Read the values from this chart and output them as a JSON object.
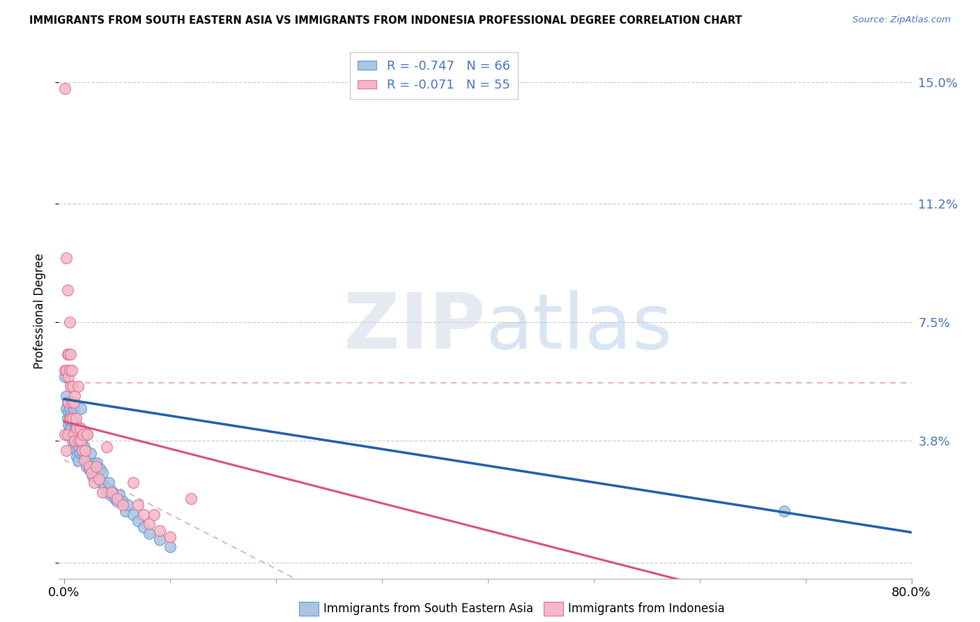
{
  "title": "IMMIGRANTS FROM SOUTH EASTERN ASIA VS IMMIGRANTS FROM INDONESIA PROFESSIONAL DEGREE CORRELATION CHART",
  "source": "Source: ZipAtlas.com",
  "ylabel": "Professional Degree",
  "ytick_vals": [
    0.0,
    0.038,
    0.075,
    0.112,
    0.15
  ],
  "ytick_labels": [
    "",
    "3.8%",
    "7.5%",
    "11.2%",
    "15.0%"
  ],
  "legend_entry1": "R = -0.747   N = 66",
  "legend_entry2": "R = -0.071   N = 55",
  "legend_label1": "Immigrants from South Eastern Asia",
  "legend_label2": "Immigrants from Indonesia",
  "watermark_zip": "ZIP",
  "watermark_atlas": "atlas",
  "color_blue_fill": "#aac4e2",
  "color_blue_edge": "#5b9bd5",
  "color_pink_fill": "#f4b8c8",
  "color_pink_edge": "#e07090",
  "color_line_blue": "#1f5fa6",
  "color_line_pink": "#d94f7a",
  "color_ci_pink": "#e8a0b8",
  "color_grid": "#cccccc",
  "color_ytick": "#4472c4",
  "xlim": [
    0.0,
    0.8
  ],
  "ylim": [
    -0.005,
    0.162
  ],
  "blue_x": [
    0.001,
    0.002,
    0.002,
    0.003,
    0.003,
    0.004,
    0.004,
    0.005,
    0.005,
    0.005,
    0.006,
    0.006,
    0.007,
    0.007,
    0.008,
    0.008,
    0.009,
    0.009,
    0.01,
    0.01,
    0.011,
    0.011,
    0.012,
    0.012,
    0.013,
    0.013,
    0.014,
    0.015,
    0.015,
    0.016,
    0.017,
    0.018,
    0.019,
    0.02,
    0.021,
    0.022,
    0.023,
    0.024,
    0.025,
    0.026,
    0.027,
    0.028,
    0.03,
    0.031,
    0.033,
    0.034,
    0.035,
    0.036,
    0.038,
    0.04,
    0.042,
    0.044,
    0.046,
    0.048,
    0.05,
    0.052,
    0.055,
    0.058,
    0.06,
    0.065,
    0.07,
    0.075,
    0.08,
    0.09,
    0.1,
    0.68
  ],
  "blue_y": [
    0.058,
    0.052,
    0.048,
    0.05,
    0.045,
    0.047,
    0.043,
    0.048,
    0.044,
    0.041,
    0.046,
    0.042,
    0.044,
    0.04,
    0.05,
    0.038,
    0.048,
    0.036,
    0.044,
    0.038,
    0.042,
    0.035,
    0.04,
    0.033,
    0.038,
    0.032,
    0.036,
    0.042,
    0.034,
    0.048,
    0.037,
    0.034,
    0.036,
    0.032,
    0.03,
    0.04,
    0.031,
    0.029,
    0.034,
    0.029,
    0.027,
    0.031,
    0.027,
    0.031,
    0.026,
    0.029,
    0.025,
    0.028,
    0.024,
    0.022,
    0.025,
    0.021,
    0.022,
    0.02,
    0.019,
    0.021,
    0.019,
    0.016,
    0.018,
    0.015,
    0.013,
    0.011,
    0.009,
    0.007,
    0.005,
    0.016
  ],
  "pink_x": [
    0.001,
    0.001,
    0.001,
    0.002,
    0.002,
    0.002,
    0.003,
    0.003,
    0.003,
    0.004,
    0.004,
    0.004,
    0.005,
    0.005,
    0.005,
    0.006,
    0.006,
    0.006,
    0.007,
    0.007,
    0.008,
    0.008,
    0.009,
    0.009,
    0.01,
    0.01,
    0.011,
    0.012,
    0.013,
    0.014,
    0.015,
    0.016,
    0.017,
    0.018,
    0.019,
    0.02,
    0.022,
    0.024,
    0.026,
    0.028,
    0.03,
    0.033,
    0.036,
    0.04,
    0.045,
    0.05,
    0.055,
    0.065,
    0.07,
    0.075,
    0.08,
    0.085,
    0.09,
    0.1,
    0.12
  ],
  "pink_y": [
    0.148,
    0.06,
    0.04,
    0.095,
    0.06,
    0.035,
    0.085,
    0.065,
    0.04,
    0.065,
    0.058,
    0.05,
    0.075,
    0.06,
    0.045,
    0.065,
    0.055,
    0.045,
    0.06,
    0.05,
    0.055,
    0.045,
    0.05,
    0.04,
    0.052,
    0.038,
    0.045,
    0.042,
    0.055,
    0.038,
    0.042,
    0.038,
    0.035,
    0.04,
    0.032,
    0.035,
    0.04,
    0.03,
    0.028,
    0.025,
    0.03,
    0.026,
    0.022,
    0.036,
    0.022,
    0.02,
    0.018,
    0.025,
    0.018,
    0.015,
    0.012,
    0.015,
    0.01,
    0.008,
    0.02
  ],
  "pink_r": -0.071,
  "blue_r": -0.747,
  "blue_intercept": 0.051,
  "blue_slope": -0.052,
  "pink_intercept": 0.044,
  "pink_slope": -0.085
}
